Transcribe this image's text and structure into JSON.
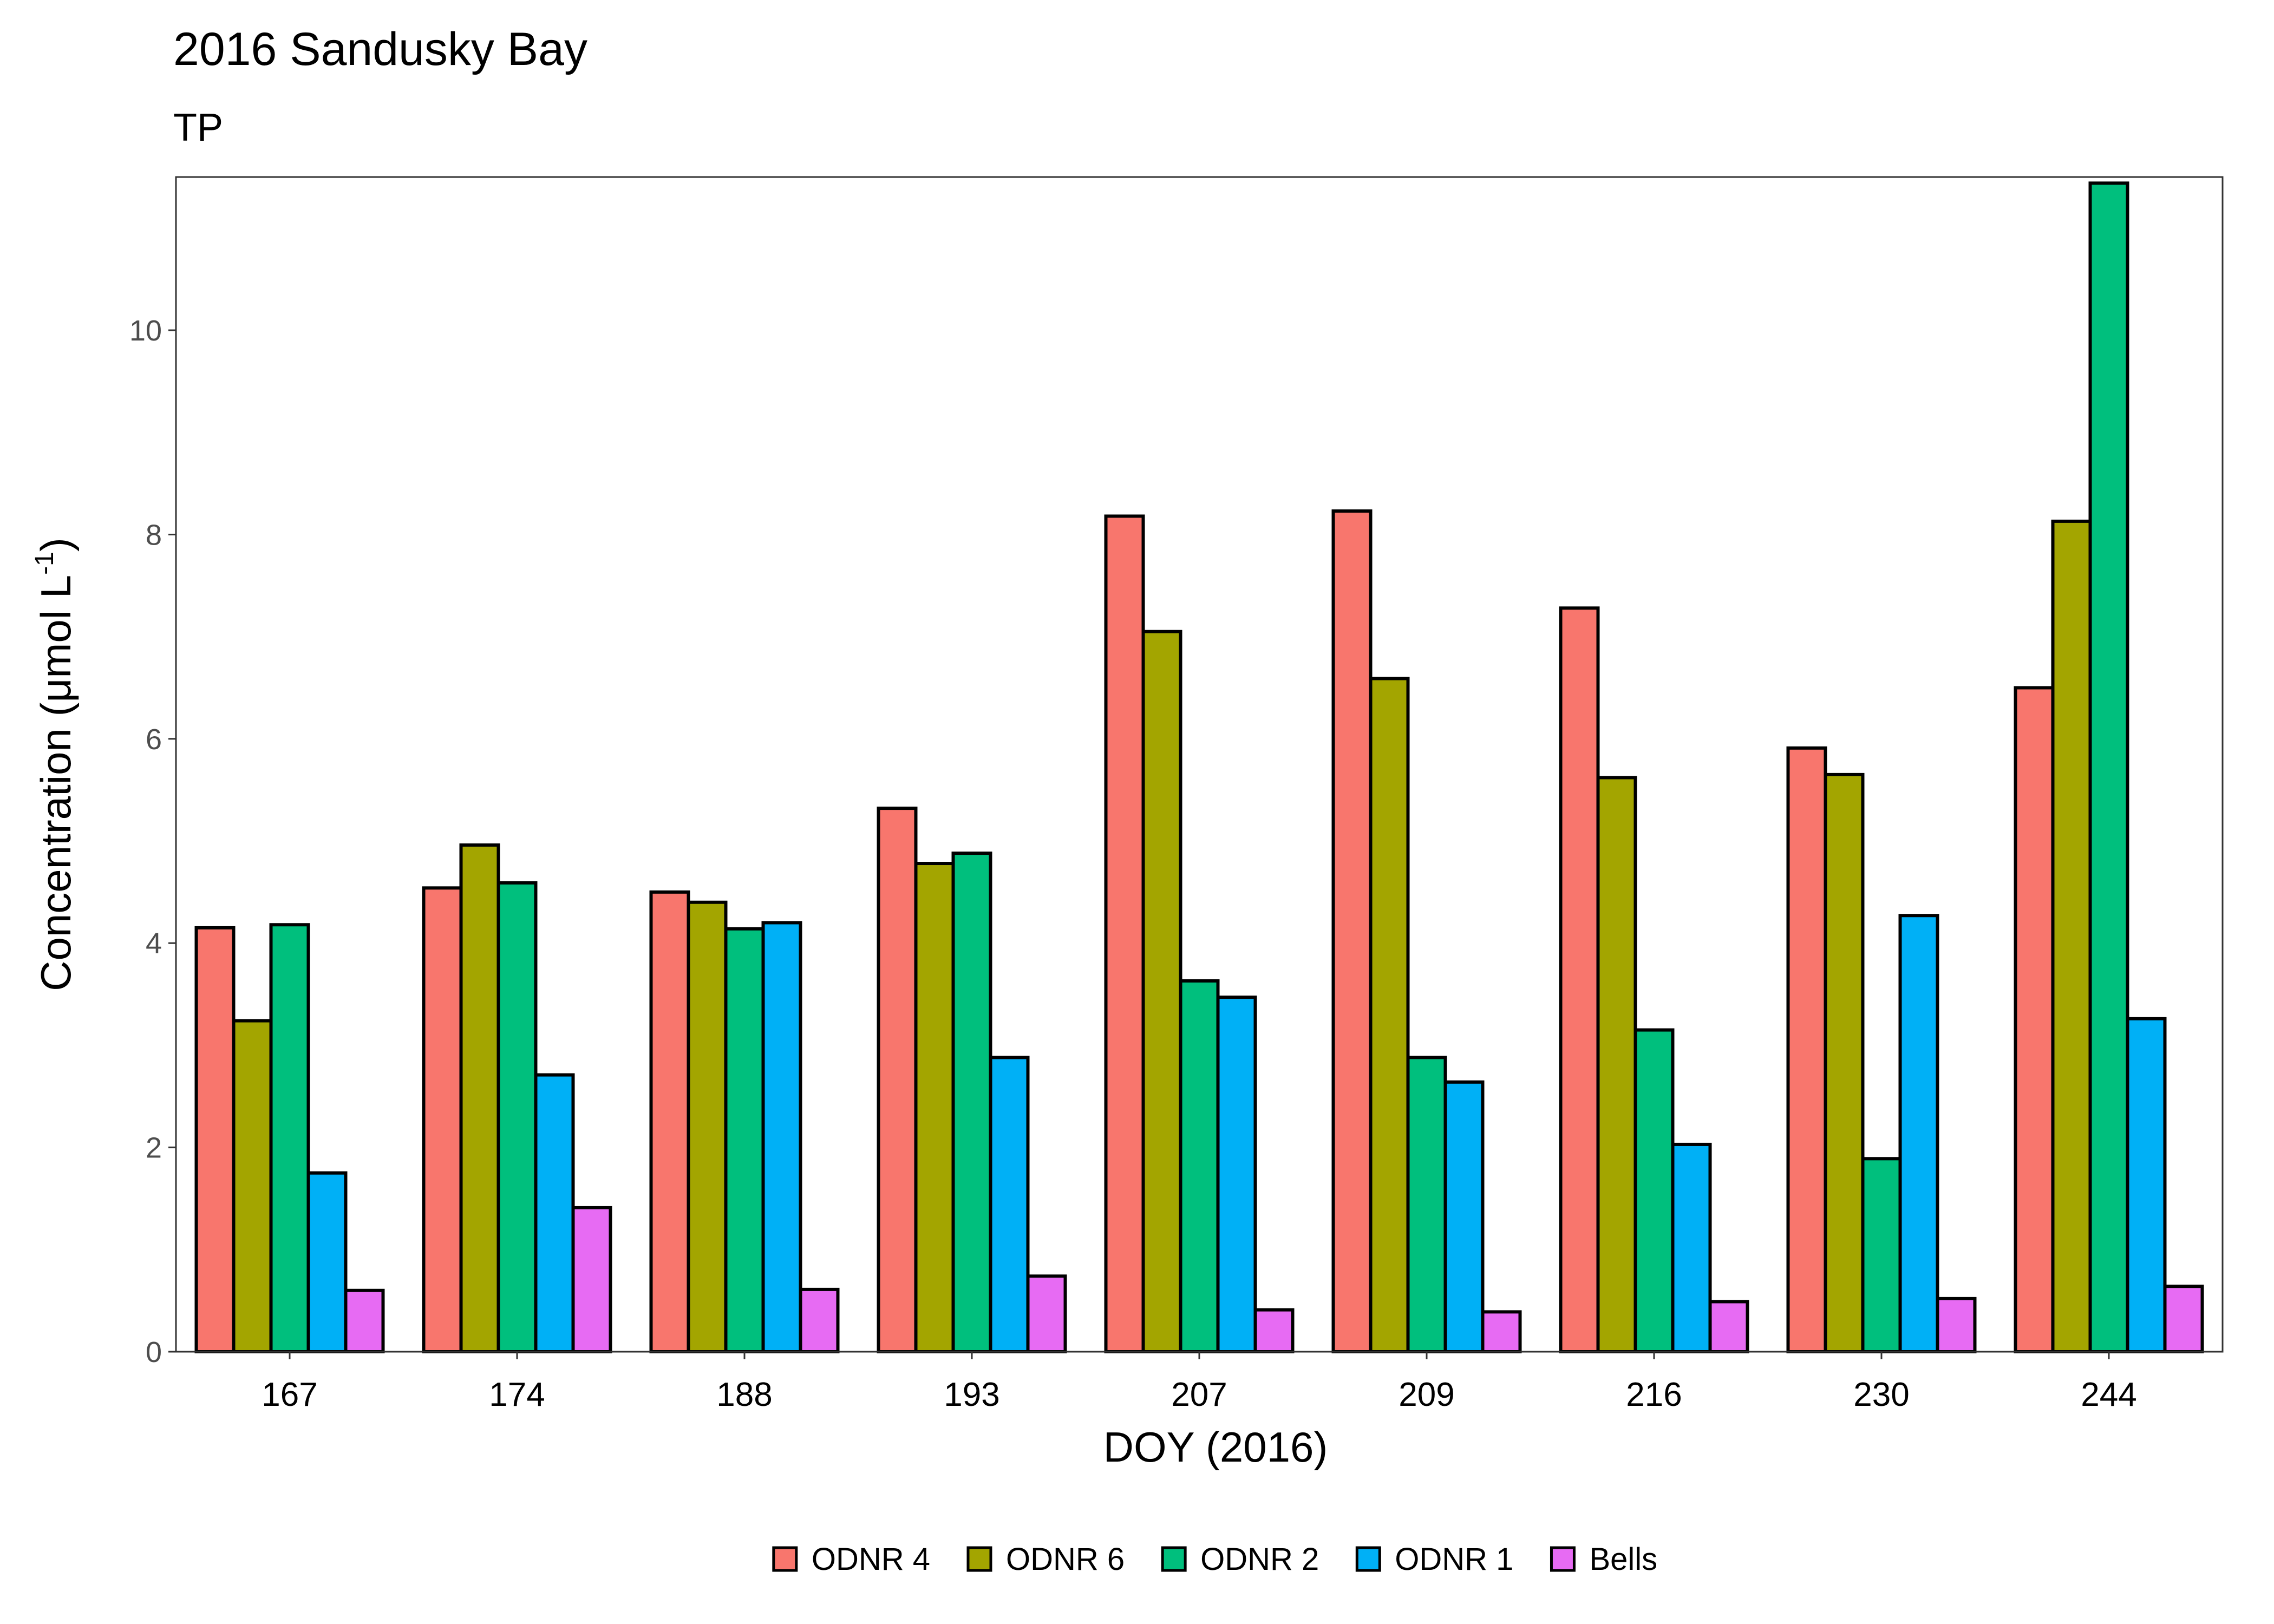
{
  "chart_data": {
    "type": "bar",
    "title": "2016 Sandusky Bay",
    "subtitle": "TP",
    "xlabel": "DOY (2016)",
    "ylabel_main": "Concentration (μmol L",
    "ylabel_sup": "-1",
    "ylabel_close": ")",
    "ylim": [
      0,
      11.5
    ],
    "yticks": [
      0,
      2,
      4,
      6,
      8,
      10
    ],
    "grid": false,
    "legend_position": "bottom",
    "categories": [
      "167",
      "174",
      "188",
      "193",
      "207",
      "209",
      "216",
      "230",
      "244"
    ],
    "series": [
      {
        "name": "ODNR 4",
        "color": "#F8766D",
        "values": [
          4.15,
          4.54,
          4.5,
          5.32,
          8.18,
          8.23,
          7.28,
          5.91,
          6.5
        ]
      },
      {
        "name": "ODNR 6",
        "color": "#A3A500",
        "values": [
          3.24,
          4.96,
          4.4,
          4.78,
          7.05,
          6.59,
          5.62,
          5.65,
          8.13
        ]
      },
      {
        "name": "ODNR 2",
        "color": "#00BF7D",
        "values": [
          4.18,
          4.59,
          4.14,
          4.88,
          3.63,
          2.88,
          3.15,
          1.89,
          11.44
        ]
      },
      {
        "name": "ODNR 1",
        "color": "#00B0F6",
        "values": [
          1.75,
          2.71,
          4.2,
          2.88,
          3.47,
          2.64,
          2.03,
          4.27,
          3.26
        ]
      },
      {
        "name": "Bells",
        "color": "#E76BF3",
        "values": [
          0.6,
          1.41,
          0.61,
          0.74,
          0.41,
          0.39,
          0.49,
          0.52,
          0.64
        ]
      }
    ]
  }
}
